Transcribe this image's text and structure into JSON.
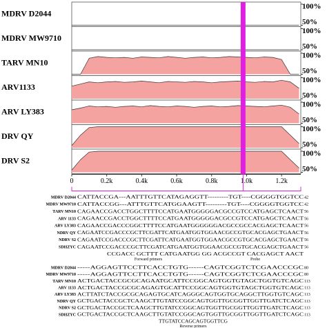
{
  "chart_data": [
    {
      "type": "area",
      "title": "MDRV D2044",
      "x": [
        0,
        50,
        100,
        150,
        200,
        250,
        300,
        350,
        400,
        450,
        500,
        550,
        600,
        650,
        700,
        750,
        800,
        850,
        900,
        950,
        1000,
        1050,
        1100,
        1150,
        1200,
        1250,
        1300
      ],
      "values": [
        50,
        50,
        50,
        50,
        50,
        50,
        50,
        50,
        50,
        50,
        50,
        50,
        50,
        50,
        50,
        50,
        50,
        50,
        50,
        50,
        50,
        50,
        50,
        50,
        50,
        50,
        50
      ],
      "xlim": [
        0,
        1310
      ],
      "ylim": [
        50,
        100
      ],
      "yticks": [
        {
          "value": 50,
          "label": "50%"
        },
        {
          "value": 100,
          "label": "100%"
        }
      ],
      "color": "#f5a3a0"
    },
    {
      "type": "area",
      "title": "MDRV MW9710",
      "x": [
        0,
        50,
        100,
        150,
        200,
        250,
        300,
        350,
        400,
        450,
        500,
        550,
        600,
        650,
        700,
        750,
        800,
        850,
        900,
        950,
        1000,
        1050,
        1100,
        1150,
        1200,
        1250,
        1300
      ],
      "values": [
        50,
        50,
        50,
        50,
        50,
        50,
        50,
        50,
        50,
        50,
        50,
        50,
        50,
        50,
        50,
        50,
        50,
        50,
        50,
        50,
        50,
        50,
        50,
        50,
        50,
        50,
        50
      ],
      "xlim": [
        0,
        1310
      ],
      "ylim": [
        50,
        100
      ],
      "yticks": [
        {
          "value": 50,
          "label": "50%"
        },
        {
          "value": 100,
          "label": "100%"
        }
      ],
      "color": "#f5a3a0"
    },
    {
      "type": "area",
      "title": "TARV MN10",
      "x": [
        0,
        50,
        100,
        150,
        200,
        250,
        300,
        350,
        400,
        450,
        500,
        550,
        600,
        650,
        700,
        750,
        800,
        850,
        900,
        950,
        1000,
        1050,
        1100,
        1150,
        1200,
        1250,
        1300
      ],
      "values": [
        50,
        50,
        88,
        92,
        90,
        89,
        90,
        88,
        91,
        90,
        89,
        92,
        90,
        88,
        90,
        91,
        89,
        90,
        92,
        91,
        90,
        89,
        91,
        90,
        85,
        50,
        50
      ],
      "xlim": [
        0,
        1310
      ],
      "ylim": [
        50,
        100
      ],
      "yticks": [
        {
          "value": 50,
          "label": "50%"
        },
        {
          "value": 100,
          "label": "100%"
        }
      ],
      "color": "#f5a3a0"
    },
    {
      "type": "area",
      "title": "ARV1133",
      "x": [
        0,
        50,
        100,
        150,
        200,
        250,
        300,
        350,
        400,
        450,
        500,
        550,
        600,
        650,
        700,
        750,
        800,
        850,
        900,
        950,
        1000,
        1050,
        1100,
        1150,
        1200,
        1250,
        1300
      ],
      "values": [
        80,
        85,
        90,
        88,
        90,
        91,
        89,
        90,
        92,
        90,
        88,
        91,
        90,
        89,
        91,
        90,
        88,
        90,
        91,
        92,
        90,
        89,
        91,
        90,
        94,
        90,
        75
      ],
      "xlim": [
        0,
        1310
      ],
      "ylim": [
        50,
        100
      ],
      "yticks": [
        {
          "value": 50,
          "label": "50%"
        },
        {
          "value": 100,
          "label": "100%"
        }
      ],
      "color": "#f5a3a0"
    },
    {
      "type": "area",
      "title": "ARV LY383",
      "x": [
        0,
        50,
        100,
        150,
        200,
        250,
        300,
        350,
        400,
        450,
        500,
        550,
        600,
        650,
        700,
        750,
        800,
        850,
        900,
        950,
        1000,
        1050,
        1100,
        1150,
        1200,
        1250,
        1300
      ],
      "values": [
        82,
        86,
        91,
        89,
        90,
        88,
        90,
        91,
        89,
        92,
        90,
        89,
        91,
        90,
        88,
        90,
        91,
        89,
        90,
        92,
        91,
        90,
        89,
        91,
        93,
        88,
        72
      ],
      "xlim": [
        0,
        1310
      ],
      "ylim": [
        50,
        100
      ],
      "yticks": [
        {
          "value": 50,
          "label": "50%"
        },
        {
          "value": 100,
          "label": "100%"
        }
      ],
      "color": "#f5a3a0"
    },
    {
      "type": "area",
      "title": "DRV QY",
      "x": [
        0,
        50,
        100,
        150,
        200,
        250,
        300,
        350,
        400,
        450,
        500,
        550,
        600,
        650,
        700,
        750,
        800,
        850,
        900,
        950,
        1000,
        1050,
        1100,
        1150,
        1200,
        1250,
        1300
      ],
      "values": [
        55,
        80,
        98,
        100,
        100,
        100,
        100,
        100,
        100,
        100,
        100,
        100,
        100,
        100,
        100,
        100,
        100,
        100,
        100,
        100,
        100,
        100,
        100,
        100,
        100,
        80,
        60
      ],
      "xlim": [
        0,
        1310
      ],
      "ylim": [
        50,
        100
      ],
      "yticks": [
        {
          "value": 50,
          "label": "50%"
        },
        {
          "value": 100,
          "label": "100%"
        }
      ],
      "color": "#f5a3a0"
    },
    {
      "type": "area",
      "title": "DRV S2",
      "x": [
        0,
        50,
        100,
        150,
        200,
        250,
        300,
        350,
        400,
        450,
        500,
        550,
        600,
        650,
        700,
        750,
        800,
        850,
        900,
        950,
        1000,
        1050,
        1100,
        1150,
        1200,
        1250,
        1300
      ],
      "values": [
        55,
        80,
        98,
        100,
        100,
        100,
        100,
        100,
        100,
        100,
        100,
        100,
        100,
        100,
        100,
        100,
        100,
        100,
        100,
        100,
        100,
        100,
        100,
        100,
        100,
        80,
        60
      ],
      "xlim": [
        0,
        1310
      ],
      "ylim": [
        50,
        100
      ],
      "yticks": [
        {
          "value": 50,
          "label": "50%"
        },
        {
          "value": 100,
          "label": "100%"
        }
      ],
      "color": "#f5a3a0",
      "xticks": [
        0,
        {
          "value": 200,
          "label": "0.2k"
        },
        {
          "value": 400,
          "label": "0.4k"
        },
        {
          "value": 600,
          "label": "0.6k"
        },
        {
          "value": 800,
          "label": "0.8k"
        },
        {
          "value": 1000,
          "label": "1.0k"
        },
        {
          "value": 1200,
          "label": "1.2k"
        }
      ],
      "highlight_x": 980,
      "highlight_color": "#e020e0"
    }
  ],
  "alignment1": {
    "rows": [
      {
        "name": "MDRV D2044",
        "seq": "CATTACCGA---AATTTGTTCATAGAGGTT---------TGT----CGGGGTGGTCC",
        "end": "42"
      },
      {
        "name": "MDRV MW9710",
        "seq": "CATTACCGG---ATTTGTTCATGGAAGTT---------TGT----CGGGGTGGTCC",
        "end": "42"
      },
      {
        "name": "TARV MN10",
        "seq": "CAGAACCGACCTGGCTTTTCCATGAATGGGGGACGCCGTCCATGAGCTCAACT",
        "end": "56"
      },
      {
        "name": "ARV 1133",
        "seq": "CAGAACCGACCTGGCTTTTCCATGAATGGGGGACGCCGTCCATGAGCTCAACT",
        "end": "56"
      },
      {
        "name": "ARV LY383",
        "seq": "CAGAACCGACCCGGCTTTTCCATGAATGGGGGGACGCCGCCACGAGCTCAACT",
        "end": "56"
      },
      {
        "name": "NDRV QY",
        "seq": "CAGAATCCGACCCGCTTCGATTCATGAATGGTGGAACGCCGTGCACGAGCTGAACT",
        "end": "56"
      },
      {
        "name": "NDRV S2",
        "seq": "CAGAATCCGACCCGCTTCGATTCATGAATGGTGGAACGCCGTGCACGAGCTGAACT",
        "end": "56"
      },
      {
        "name": "SDHZYC",
        "seq": "CAGAATCCGACCCGCTTCGATCATGAATGGTGGAACGCCGTGCACGAGCTGAACT",
        "end": "56"
      }
    ],
    "consensus": "CCGACC GCTTT CATGAATGG GG ACGCCGT CACGAGCT AACT",
    "labels": [
      "Forward primers",
      "Probe"
    ]
  },
  "alignment2": {
    "rows": [
      {
        "name": "MDRV D2044",
        "seq": "-----AGGAGTTCCTTCACCTGTG------CAGTCGGTCTCGAACCCGC",
        "end": "80"
      },
      {
        "name": "MDRV MW9710",
        "seq": "-----AGGAGTTCCTTCACCTGTG------CAGTCGGTCTCGAACCCGC",
        "end": "80"
      },
      {
        "name": "TARV MN10",
        "seq": "ACTGACTACCGCGCAGAATGCATTCCGGCAGTGGTGTAGCTGGTGTCAGC",
        "end": "113"
      },
      {
        "name": "ARV 1133",
        "seq": "ACTGACTACCGCGCAGAGTGCATTCCGGCAGTGGTGTAGCTGGTGTCAGC",
        "end": "113"
      },
      {
        "name": "ARV LY383",
        "seq": "ACTTATCTACCGCGCAGAGTGCATCAGGGCAGTGGTGCAGGCTTGGTGTCAGC",
        "end": "113"
      },
      {
        "name": "NDRV QY",
        "seq": "GCTGACTACCGCTCAAGCTTGTATCCGGCAGTGGTTGCGGTTGGTTGATCTCAGC",
        "end": "113"
      },
      {
        "name": "NDRV S2",
        "seq": "GCTGACTACCGCTCAAGCTTGTATCCGGCAGTGGTTGCGGTTGGTTGATCTCAGC",
        "end": "113"
      },
      {
        "name": "SDHZYC",
        "seq": "GCTGACTACCGCTCAAGCTTGTATCCGGCAGTGGTTGCGGTTGGTTGATCTCAGC",
        "end": "113"
      }
    ],
    "consensus": "TTGTATCCAGCAGTGGTTCG",
    "labels": [
      "Reverse primers"
    ]
  }
}
